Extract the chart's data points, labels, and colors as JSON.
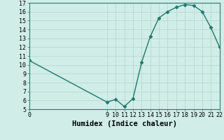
{
  "x": [
    0,
    9,
    10,
    11,
    12,
    13,
    14,
    15,
    16,
    17,
    18,
    19,
    20,
    21,
    22
  ],
  "y": [
    10.5,
    5.8,
    6.1,
    5.3,
    6.2,
    10.3,
    13.2,
    15.3,
    16.0,
    16.5,
    16.8,
    16.7,
    16.0,
    14.2,
    12.0
  ],
  "xlabel": "Humidex (Indice chaleur)",
  "xlim": [
    0,
    22
  ],
  "ylim": [
    5,
    17
  ],
  "line_color": "#1a7a6e",
  "marker_color": "#1a7a6e",
  "bg_color": "#d0ede8",
  "grid_color": "#b8d8d2",
  "xlabel_fontsize": 7.5,
  "tick_fontsize": 6,
  "ytick_min": 5,
  "ytick_max": 17,
  "xtick_vals": [
    0,
    9,
    10,
    11,
    12,
    13,
    14,
    15,
    16,
    17,
    18,
    19,
    20,
    21,
    22
  ]
}
